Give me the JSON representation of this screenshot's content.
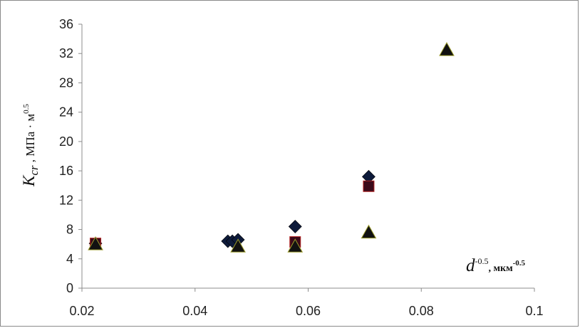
{
  "chart_data": {
    "type": "scatter",
    "title": "",
    "xlabel": {
      "main": "d",
      "exp": "-0.5",
      "unit": ", мкм",
      "unit_exp": "-0.5"
    },
    "ylabel": {
      "main": "K",
      "sub": "cr",
      "unit": " , МПа · м",
      "unit_exp": "0.5"
    },
    "xlim": [
      0.02,
      0.1
    ],
    "ylim": [
      0,
      36
    ],
    "x_ticks": [
      "0.02",
      "0.04",
      "0.06",
      "0.08",
      "0.1"
    ],
    "y_ticks": [
      "0",
      "4",
      "8",
      "12",
      "16",
      "20",
      "24",
      "28",
      "32",
      "36"
    ],
    "grid": false,
    "legend": "none",
    "series": [
      {
        "marker": "diamond",
        "color": "#0d1a3a",
        "points": [
          [
            0.0224,
            6.1
          ],
          [
            0.0458,
            6.4
          ],
          [
            0.0466,
            6.4
          ],
          [
            0.0476,
            6.6
          ],
          [
            0.0577,
            8.4
          ],
          [
            0.0707,
            15.2
          ]
        ]
      },
      {
        "marker": "square",
        "color": "#3b0a1a",
        "stroke": "#b22222",
        "points": [
          [
            0.0224,
            6.1
          ],
          [
            0.0577,
            6.3
          ],
          [
            0.0707,
            13.9
          ]
        ]
      },
      {
        "marker": "triangle",
        "color": "#111111",
        "stroke": "#9a9a2a",
        "points": [
          [
            0.0224,
            6.0
          ],
          [
            0.0476,
            5.7
          ],
          [
            0.0577,
            5.7
          ],
          [
            0.0707,
            7.6
          ],
          [
            0.0845,
            32.5
          ]
        ]
      }
    ]
  }
}
